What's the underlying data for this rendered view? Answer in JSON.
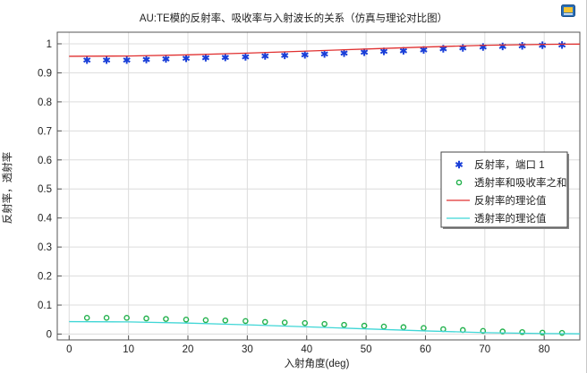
{
  "chart_data": {
    "type": "scatter",
    "title": "AU:TE模的反射率、吸收率与入射波长的关系（仿真与理论对比图）",
    "xlabel": "入射角度(deg)",
    "ylabel": "反射率，透射率",
    "xlim": [
      -2,
      86
    ],
    "ylim": [
      -0.02,
      1.04
    ],
    "xticks": [
      0,
      10,
      20,
      30,
      40,
      50,
      60,
      70,
      80
    ],
    "yticks": [
      0,
      0.1,
      0.2,
      0.3,
      0.4,
      0.5,
      0.6,
      0.7,
      0.8,
      0.9,
      1
    ],
    "ytick_labels": [
      "0",
      "0.1",
      "0.2",
      "0.3",
      "0.4",
      "0.5",
      "0.6",
      "0.7",
      "0.8",
      "0.9",
      "1"
    ],
    "grid": true,
    "legend_position": "right",
    "series": [
      {
        "name": "反射率，端口 1",
        "kind": "marker-star",
        "color": "#1a3fd8",
        "x": [
          3,
          6.3,
          9.7,
          13,
          16.3,
          19.7,
          23,
          26.3,
          29.7,
          33,
          36.3,
          39.7,
          43,
          46.3,
          49.7,
          53,
          56.3,
          59.7,
          63,
          66.3,
          69.7,
          73,
          76.3,
          79.7,
          83
        ],
        "y": [
          0.944,
          0.944,
          0.944,
          0.946,
          0.948,
          0.95,
          0.952,
          0.953,
          0.955,
          0.958,
          0.96,
          0.962,
          0.965,
          0.968,
          0.971,
          0.974,
          0.976,
          0.979,
          0.983,
          0.986,
          0.989,
          0.991,
          0.993,
          0.995,
          0.996
        ]
      },
      {
        "name": "透射率和吸收率之和",
        "kind": "marker-circle",
        "color": "#22b14c",
        "x": [
          3,
          6.3,
          9.7,
          13,
          16.3,
          19.7,
          23,
          26.3,
          29.7,
          33,
          36.3,
          39.7,
          43,
          46.3,
          49.7,
          53,
          56.3,
          59.7,
          63,
          66.3,
          69.7,
          73,
          76.3,
          79.7,
          83
        ],
        "y": [
          0.056,
          0.056,
          0.056,
          0.054,
          0.052,
          0.05,
          0.048,
          0.047,
          0.045,
          0.042,
          0.04,
          0.038,
          0.035,
          0.032,
          0.029,
          0.026,
          0.024,
          0.021,
          0.017,
          0.014,
          0.011,
          0.009,
          0.007,
          0.005,
          0.004
        ]
      },
      {
        "name": "反射率的理论值",
        "kind": "line",
        "color": "#e03030",
        "x": [
          0,
          10,
          20,
          30,
          40,
          50,
          60,
          70,
          80,
          86
        ],
        "y": [
          0.957,
          0.958,
          0.962,
          0.968,
          0.975,
          0.982,
          0.989,
          0.995,
          0.998,
          0.999
        ]
      },
      {
        "name": "透射率的理论值",
        "kind": "line",
        "color": "#3fd6d6",
        "x": [
          0,
          10,
          20,
          30,
          40,
          50,
          60,
          70,
          80,
          86
        ],
        "y": [
          0.043,
          0.042,
          0.038,
          0.032,
          0.025,
          0.018,
          0.011,
          0.005,
          0.002,
          0.001
        ]
      }
    ]
  }
}
